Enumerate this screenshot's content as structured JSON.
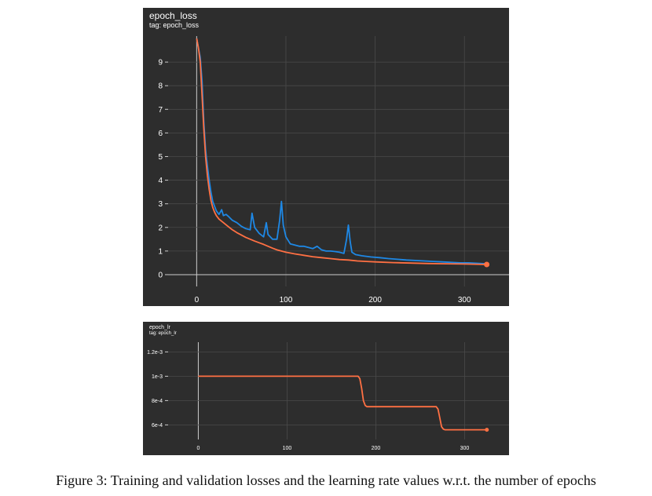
{
  "caption": "Figure 3: Training and validation losses and the learning rate values w.r.t. the number of epochs",
  "colors": {
    "train": "#ff7043",
    "validation": "#1e88e5",
    "background": "#2d2d2d",
    "grid": "#4a4a4a",
    "axis": "#cccccc",
    "text": "#ffffff"
  },
  "chart_data": [
    {
      "type": "line",
      "title": "epoch_loss",
      "subtitle": "tag: epoch_loss",
      "xticks": [
        0,
        100,
        200,
        300
      ],
      "yticks": [
        0,
        1,
        2,
        3,
        4,
        5,
        6,
        7,
        8,
        9
      ],
      "xlim": [
        -32,
        350
      ],
      "ylim": [
        -0.5,
        10.1
      ],
      "grid": true,
      "series": [
        {
          "color": "#1e88e5",
          "x": [
            0,
            2,
            4,
            6,
            8,
            10,
            12,
            14,
            16,
            18,
            20,
            22,
            25,
            28,
            30,
            33,
            36,
            40,
            45,
            50,
            55,
            60,
            62,
            65,
            70,
            75,
            78,
            80,
            85,
            90,
            93,
            95,
            97,
            100,
            105,
            110,
            115,
            120,
            125,
            130,
            135,
            140,
            145,
            150,
            155,
            160,
            165,
            168,
            170,
            172,
            174,
            178,
            185,
            195,
            205,
            215,
            225,
            235,
            245,
            255,
            265,
            275,
            285,
            295,
            305,
            315,
            325
          ],
          "y": [
            10.0,
            9.6,
            9.2,
            8.2,
            6.5,
            5.3,
            4.6,
            4.0,
            3.5,
            3.1,
            2.9,
            2.7,
            2.55,
            2.75,
            2.5,
            2.55,
            2.45,
            2.3,
            2.2,
            2.05,
            1.95,
            1.9,
            2.6,
            2.0,
            1.75,
            1.6,
            2.2,
            1.7,
            1.5,
            1.5,
            2.3,
            3.1,
            2.1,
            1.6,
            1.3,
            1.25,
            1.2,
            1.2,
            1.15,
            1.1,
            1.2,
            1.05,
            1.0,
            1.0,
            0.98,
            0.95,
            0.9,
            1.5,
            2.1,
            1.4,
            0.95,
            0.85,
            0.8,
            0.75,
            0.72,
            0.68,
            0.65,
            0.62,
            0.6,
            0.58,
            0.56,
            0.54,
            0.52,
            0.5,
            0.5,
            0.48,
            0.46
          ]
        },
        {
          "color": "#ff7043",
          "x": [
            0,
            2,
            4,
            6,
            8,
            10,
            12,
            14,
            16,
            18,
            20,
            22,
            25,
            30,
            35,
            40,
            45,
            50,
            55,
            60,
            65,
            70,
            75,
            80,
            85,
            90,
            95,
            100,
            110,
            120,
            130,
            140,
            150,
            160,
            170,
            180,
            190,
            200,
            220,
            240,
            260,
            280,
            300,
            325
          ],
          "y": [
            10.0,
            9.6,
            9.0,
            7.6,
            6.2,
            5.0,
            4.2,
            3.6,
            3.15,
            2.85,
            2.65,
            2.5,
            2.35,
            2.2,
            2.05,
            1.9,
            1.78,
            1.68,
            1.58,
            1.5,
            1.42,
            1.35,
            1.28,
            1.2,
            1.12,
            1.05,
            1.0,
            0.95,
            0.88,
            0.82,
            0.76,
            0.72,
            0.68,
            0.64,
            0.62,
            0.58,
            0.56,
            0.54,
            0.51,
            0.49,
            0.47,
            0.46,
            0.45,
            0.43
          ]
        }
      ]
    },
    {
      "type": "line",
      "title": "epoch_lr",
      "subtitle": "tag: epoch_lr",
      "xticks": [
        0,
        100,
        200,
        300
      ],
      "yticks": [
        0.0006,
        0.0008,
        0.001,
        0.0012
      ],
      "ytick_labels": [
        "6e-4",
        "8e-4",
        "1e-3",
        "1.2e-3"
      ],
      "xlim": [
        -34,
        350
      ],
      "ylim": [
        0.00048,
        0.00128
      ],
      "grid": true,
      "series": [
        {
          "color": "#ff7043",
          "x": [
            0,
            100,
            180,
            182,
            184,
            186,
            188,
            190,
            200,
            260,
            268,
            270,
            272,
            274,
            276,
            278,
            300,
            325
          ],
          "y": [
            0.001,
            0.001,
            0.001,
            0.00098,
            0.0009,
            0.0008,
            0.00076,
            0.00075,
            0.00075,
            0.00075,
            0.00075,
            0.00073,
            0.00066,
            0.000585,
            0.000565,
            0.00056,
            0.00056,
            0.00056
          ]
        }
      ]
    }
  ]
}
